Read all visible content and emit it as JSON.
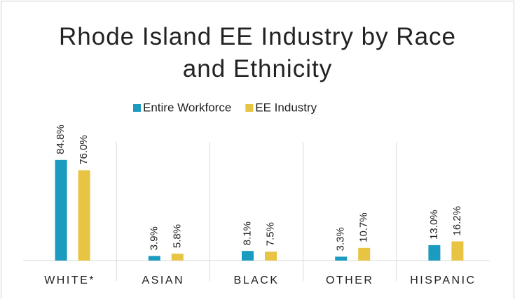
{
  "chart_data": {
    "type": "bar",
    "title": "Rhode Island EE Industry by Race and Ethnicity",
    "categories": [
      "WHITE*",
      "ASIAN",
      "BLACK",
      "OTHER",
      "HISPANIC"
    ],
    "series": [
      {
        "name": "Entire Workforce",
        "color": "#1b9bbf",
        "values": [
          84.8,
          3.9,
          8.1,
          3.3,
          13.0
        ],
        "value_labels": [
          "84.8%",
          "3.9%",
          "8.1%",
          "3.3%",
          "13.0%"
        ]
      },
      {
        "name": "EE Industry",
        "color": "#e8c443",
        "values": [
          76.0,
          5.8,
          7.5,
          10.7,
          16.2
        ],
        "value_labels": [
          "76.0%",
          "5.8%",
          "7.5%",
          "10.7%",
          "16.2%"
        ]
      }
    ],
    "ylim": [
      0,
      100
    ]
  }
}
